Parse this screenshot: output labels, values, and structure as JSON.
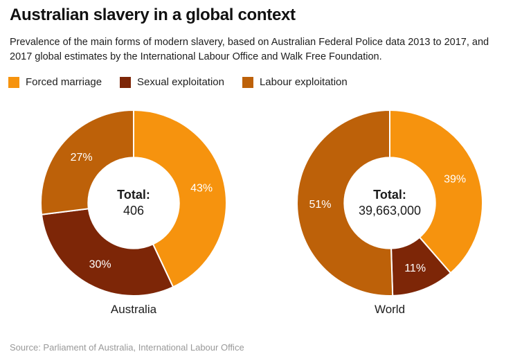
{
  "header": {
    "title": "Australian slavery in a global context",
    "subtitle": "Prevalence of the main forms of modern slavery, based on Australian Federal Police data 2013 to 2017, and 2017 global estimates by the International Labour Office and Walk Free Foundation."
  },
  "legend": [
    {
      "label": "Forced marriage",
      "color": "#F6930E"
    },
    {
      "label": "Sexual exploitation",
      "color": "#7D2607"
    },
    {
      "label": "Labour exploitation",
      "color": "#BD6109"
    }
  ],
  "chart_data": [
    {
      "type": "pie",
      "subtype": "donut",
      "label": "Australia",
      "center_title": "Total:",
      "center_value": "406",
      "total": 406,
      "categories": [
        "Forced marriage",
        "Sexual exploitation",
        "Labour exploitation"
      ],
      "values": [
        43,
        30,
        27
      ],
      "value_labels": [
        "43%",
        "30%",
        "27%"
      ],
      "value_unit": "%",
      "colors": [
        "#F6930E",
        "#7D2607",
        "#BD6109"
      ],
      "start_angle": 0,
      "direction": "clockwise",
      "inner_radius_ratio": 0.49,
      "slice_border_color": "#ffffff",
      "label_color": "#ffffff"
    },
    {
      "type": "pie",
      "subtype": "donut",
      "label": "World",
      "center_title": "Total:",
      "center_value": "39,663,000",
      "total": 39663000,
      "categories": [
        "Forced marriage",
        "Sexual exploitation",
        "Labour exploitation"
      ],
      "values": [
        39,
        11,
        51
      ],
      "value_labels": [
        "39%",
        "11%",
        "51%"
      ],
      "value_unit": "%",
      "colors": [
        "#F6930E",
        "#7D2607",
        "#BD6109"
      ],
      "start_angle": 0,
      "direction": "clockwise",
      "inner_radius_ratio": 0.49,
      "slice_border_color": "#ffffff",
      "label_color": "#ffffff"
    }
  ],
  "footer": {
    "source": "Source: Parliament of Australia, International Labour Office"
  }
}
